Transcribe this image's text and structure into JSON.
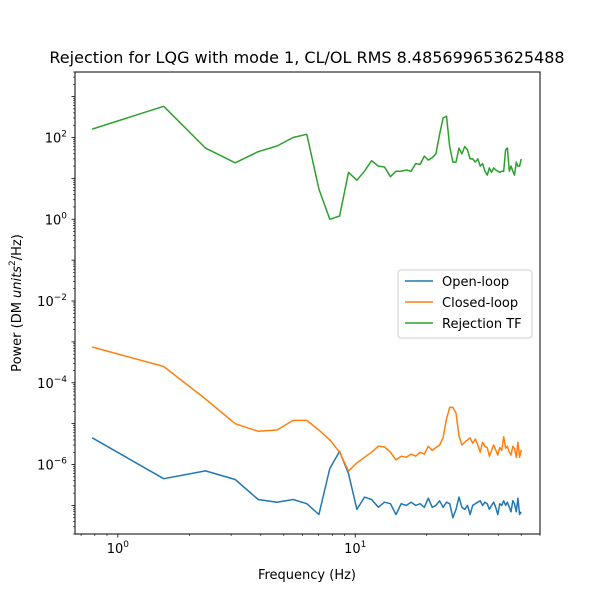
{
  "chart_data": {
    "type": "line",
    "title": "Rejection for LQG with mode 1, CL/OL RMS 8.485699653625488",
    "xlabel": "Frequency (Hz)",
    "ylabel_prefix": "Power (DM ",
    "ylabel_unit": "units",
    "ylabel_exp": "2",
    "ylabel_suffix": "/Hz)",
    "x_scale": "log",
    "y_scale": "log",
    "xlim": [
      0.66,
      60
    ],
    "ylim": [
      2e-08,
      4000.0
    ],
    "grid": false,
    "legend_position": "center-right",
    "x_ticks": [
      {
        "base": "10",
        "exp": "0",
        "value": 1
      },
      {
        "base": "10",
        "exp": "1",
        "value": 10
      }
    ],
    "y_ticks": [
      {
        "base": "10",
        "exp": "−6",
        "value": 1e-06
      },
      {
        "base": "10",
        "exp": "−4",
        "value": 0.0001
      },
      {
        "base": "10",
        "exp": "−2",
        "value": 0.01
      },
      {
        "base": "10",
        "exp": "0",
        "value": 1
      },
      {
        "base": "10",
        "exp": "2",
        "value": 100
      }
    ],
    "series": [
      {
        "name": "Open-loop",
        "color": "#1f77b4",
        "x": [
          0.78,
          1.56,
          2.34,
          3.12,
          3.9,
          4.68,
          5.47,
          6.25,
          7.03,
          7.81,
          8.59,
          9.37,
          10.16,
          10.94,
          11.72,
          12.5,
          13.28,
          14.06,
          14.84,
          15.62,
          16.4,
          17.19,
          17.97,
          18.75,
          19.53,
          20.31,
          21.09,
          21.87,
          22.66,
          23.44,
          24.22,
          25.0,
          25.78,
          26.56,
          27.34,
          28.12,
          28.9,
          29.69,
          30.47,
          31.25,
          32.03,
          32.81,
          33.59,
          34.37,
          35.15,
          35.94,
          36.72,
          37.5,
          38.28,
          39.06,
          39.84,
          40.62,
          41.4,
          42.19,
          42.97,
          43.75,
          44.53,
          45.31,
          46.09,
          46.87,
          47.66,
          48.44,
          49.22,
          50.0
        ],
        "y": [
          4.5e-06,
          4.5e-07,
          7e-07,
          4.3e-07,
          1.4e-07,
          1.2e-07,
          1.4e-07,
          1.1e-07,
          6e-08,
          8e-07,
          2.1e-06,
          6e-07,
          8e-08,
          1.6e-07,
          1.4e-07,
          9e-08,
          1.2e-07,
          1.1e-07,
          6e-08,
          1.1e-07,
          1e-07,
          1.2e-07,
          1e-07,
          1.1e-07,
          9e-08,
          1.5e-07,
          9e-08,
          1e-07,
          1.3e-07,
          9e-08,
          1.2e-07,
          1.1e-07,
          5e-08,
          8e-08,
          1.6e-07,
          9e-08,
          8e-08,
          1e-07,
          6e-08,
          1e-07,
          1.1e-07,
          1.2e-07,
          1.3e-07,
          1e-07,
          1.2e-07,
          1.1e-07,
          8e-08,
          1e-07,
          1.2e-07,
          9e-08,
          6e-08,
          1.1e-07,
          1e-07,
          1.3e-07,
          1e-07,
          1.2e-07,
          9e-08,
          7e-08,
          1.3e-07,
          1.1e-07,
          7e-08,
          1.5e-07,
          6e-08,
          7e-08
        ],
        "y_shape_note": ""
      },
      {
        "name": "Closed-loop",
        "color": "#ff7f0e",
        "x": [
          0.78,
          1.56,
          2.34,
          3.12,
          3.9,
          4.68,
          5.47,
          6.25,
          7.03,
          7.81,
          8.59,
          9.37,
          10.16,
          10.94,
          11.72,
          12.5,
          13.28,
          14.06,
          14.84,
          15.62,
          16.4,
          17.19,
          17.97,
          18.75,
          19.53,
          20.31,
          21.09,
          21.87,
          22.66,
          23.44,
          24.22,
          25.0,
          25.78,
          26.56,
          27.34,
          28.12,
          28.9,
          29.69,
          30.47,
          31.25,
          32.03,
          32.81,
          33.59,
          34.37,
          35.15,
          35.94,
          36.72,
          37.5,
          38.28,
          39.06,
          39.84,
          40.62,
          41.4,
          42.19,
          42.97,
          43.75,
          44.53,
          45.31,
          46.09,
          46.87,
          47.66,
          48.44,
          49.22,
          50.0
        ],
        "y": [
          0.00075,
          0.00025,
          4e-05,
          1e-05,
          6.5e-06,
          7e-06,
          1.2e-05,
          1.2e-05,
          7e-06,
          4e-06,
          2e-06,
          7e-07,
          1.1e-06,
          1.5e-06,
          2e-06,
          2.8e-06,
          2.7e-06,
          2e-06,
          1.3e-06,
          1.6e-06,
          1.5e-06,
          1.8e-06,
          1.6e-06,
          2e-06,
          1.8e-06,
          2.8e-06,
          2.2e-06,
          2.6e-06,
          3e-06,
          4.5e-06,
          1.3e-05,
          2.5e-05,
          2.5e-05,
          1.8e-05,
          5e-06,
          3e-06,
          3.5e-06,
          4e-06,
          4.5e-06,
          3.3e-06,
          4.2e-06,
          3e-06,
          2e-06,
          3.5e-06,
          2.8e-06,
          2.6e-06,
          1.6e-06,
          2.2e-06,
          3e-06,
          2.3e-06,
          1.7e-06,
          2.6e-06,
          2.2e-06,
          4.8e-06,
          2.5e-06,
          2.8e-06,
          2e-06,
          1.7e-06,
          2.8e-06,
          2.5e-06,
          1.5e-06,
          3.5e-06,
          1.5e-06,
          2.3e-06
        ],
        "y_shape_note": ""
      },
      {
        "name": "Rejection TF",
        "color": "#2ca02c",
        "x": [
          0.78,
          1.56,
          2.34,
          3.12,
          3.9,
          4.68,
          5.47,
          6.25,
          7.03,
          7.81,
          8.59,
          9.37,
          10.16,
          10.94,
          11.72,
          12.5,
          13.28,
          14.06,
          14.84,
          15.62,
          16.4,
          17.19,
          17.97,
          18.75,
          19.53,
          20.31,
          21.09,
          21.87,
          22.66,
          23.44,
          24.22,
          25.0,
          25.78,
          26.56,
          27.34,
          28.12,
          28.9,
          29.69,
          30.47,
          31.25,
          32.03,
          32.81,
          33.59,
          34.37,
          35.15,
          35.94,
          36.72,
          37.5,
          38.28,
          39.06,
          39.84,
          40.62,
          41.4,
          42.19,
          42.97,
          43.75,
          44.53,
          45.31,
          46.09,
          46.87,
          47.66,
          48.44,
          49.22,
          50.0
        ],
        "y": [
          160,
          580,
          55,
          24,
          45,
          62,
          100,
          120,
          5.5,
          1.0,
          1.2,
          14,
          9,
          15,
          27,
          20,
          19,
          11,
          15,
          15,
          16,
          15,
          23,
          22,
          35,
          28,
          32,
          40,
          120,
          300,
          330,
          60,
          25,
          25,
          55,
          40,
          60,
          50,
          30,
          30,
          25,
          30,
          20,
          23,
          15,
          12,
          18,
          14,
          18,
          16,
          15,
          14,
          15,
          15,
          50,
          55,
          15,
          20,
          15,
          12,
          25,
          20,
          20,
          30
        ],
        "y_shape_note": ""
      }
    ]
  }
}
